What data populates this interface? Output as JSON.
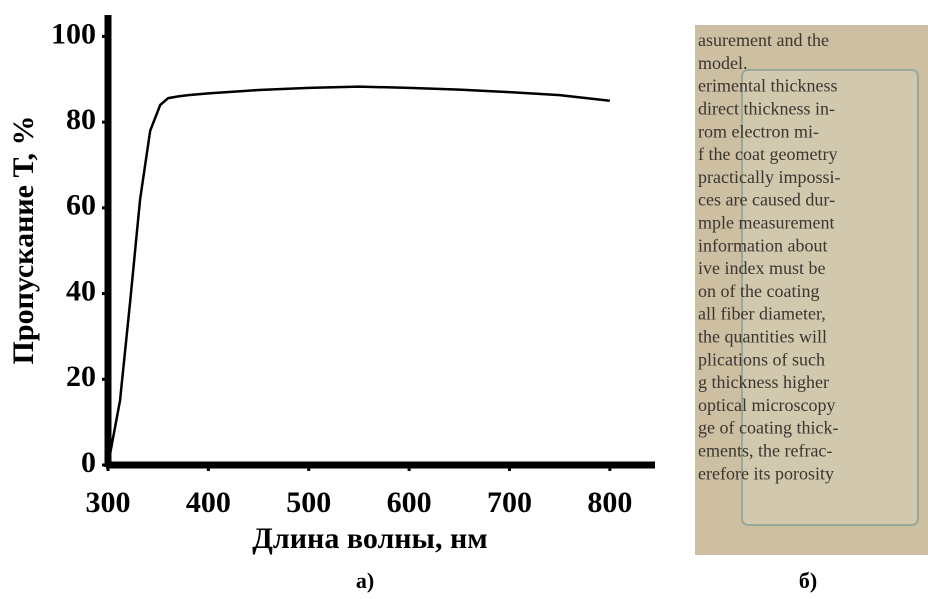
{
  "chart_data": {
    "type": "line",
    "x_label": "Длина волны, нм",
    "y_label": "Пропускание Т, %",
    "x": [
      300,
      312,
      322,
      332,
      342,
      352,
      360,
      370,
      380,
      400,
      450,
      500,
      550,
      600,
      650,
      700,
      750,
      800
    ],
    "values": [
      0,
      15,
      38,
      62,
      78,
      84,
      85.6,
      86,
      86.3,
      86.7,
      87.5,
      88,
      88.3,
      88,
      87.6,
      87,
      86.3,
      85
    ],
    "color": "#000000",
    "xlim": [
      300,
      845
    ],
    "ylim": [
      0,
      105
    ],
    "xticks": [
      300,
      400,
      500,
      600,
      700,
      800
    ],
    "yticks": [
      0,
      20,
      40,
      60,
      80,
      100
    ]
  },
  "captions": [
    "а)",
    "б)"
  ],
  "photo": {
    "lines": [
      "asurement and the",
      "model.",
      "erimental thickness",
      "direct thickness in-",
      "rom electron mi-",
      "f the coat geometry",
      "practically impossi-",
      "ces are caused dur-",
      "mple measurement",
      "information about",
      "ive index must be",
      "on of the coating",
      "all fiber diameter,",
      "the quantities will",
      "plications of such",
      "g thickness higher",
      "optical microscopy",
      "ge of coating thick-",
      "ements, the refrac-",
      "erefore its porosity"
    ]
  }
}
